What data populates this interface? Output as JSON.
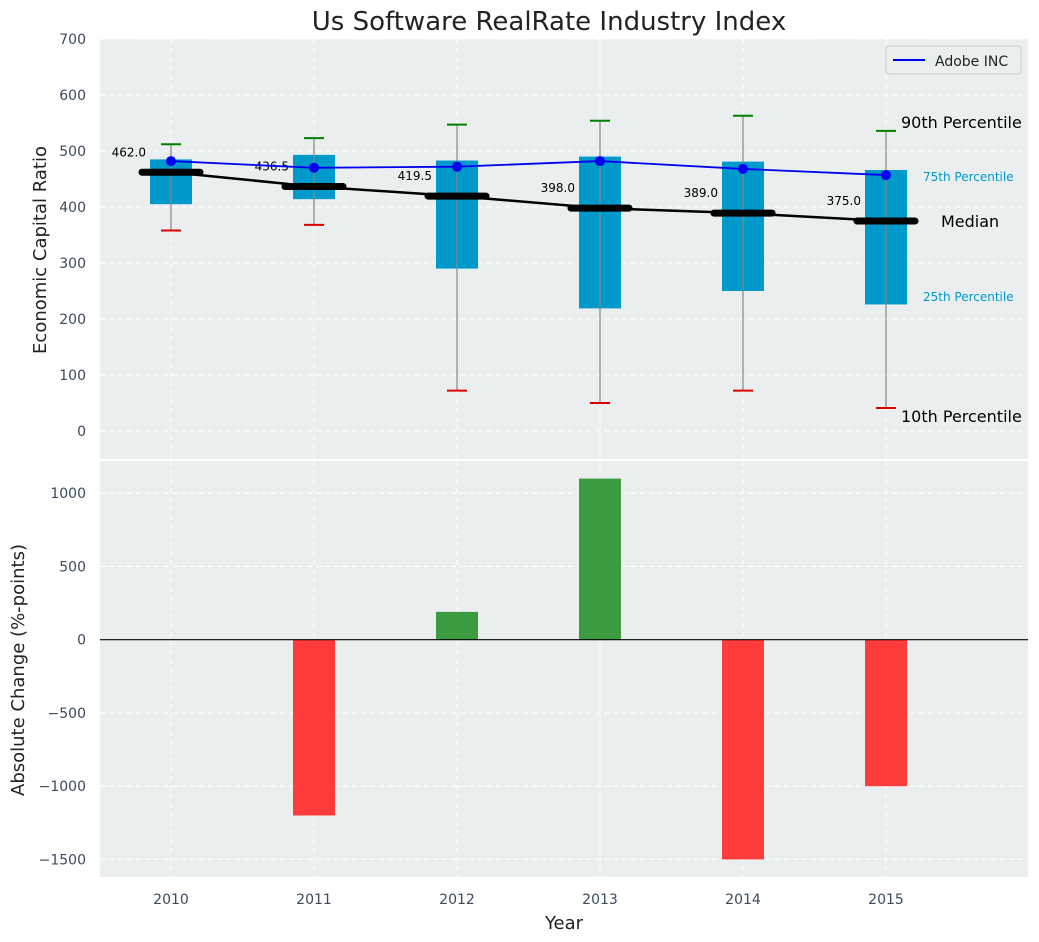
{
  "chart_data": [
    {
      "type": "box",
      "title": "Us Software RealRate Industry Index",
      "ylabel": "Economic Capital Ratio",
      "ylim": [
        -50,
        700
      ],
      "yticks": [
        0,
        100,
        200,
        300,
        400,
        500,
        600,
        700
      ],
      "categories": [
        "2010",
        "2011",
        "2012",
        "2013",
        "2014",
        "2015"
      ],
      "p10": [
        358,
        368,
        72,
        50,
        72,
        41
      ],
      "p25": [
        405,
        414,
        290,
        219,
        250,
        226
      ],
      "median": [
        462.0,
        436.5,
        419.5,
        398.0,
        389.0,
        375.0
      ],
      "median_labels": [
        "462.0",
        "436.5",
        "419.5",
        "398.0",
        "389.0",
        "375.0"
      ],
      "p75": [
        485,
        493,
        483,
        490,
        481,
        466
      ],
      "p90": [
        512,
        523,
        547,
        554,
        563,
        536
      ],
      "series": [
        {
          "name": "Adobe INC",
          "values": [
            482,
            470,
            472,
            482,
            468,
            457
          ],
          "color": "#0000ee"
        }
      ],
      "annotations": {
        "p90": "90th Percentile",
        "p75": "75th Percentile",
        "median": "Median",
        "p25": "25th Percentile",
        "p10": "10th Percentile"
      },
      "colors": {
        "box": "#0099cc",
        "median": "#000000",
        "p90_cap": "#008000",
        "p10_cap": "#dd0000",
        "whisker": "#888888",
        "background": "#eaeeef"
      },
      "legend": "top-right",
      "grid": true
    },
    {
      "type": "bar",
      "ylabel": "Absolute Change (%-points)",
      "xlabel": "Year",
      "categories": [
        "2010",
        "2011",
        "2012",
        "2013",
        "2014",
        "2015"
      ],
      "values": [
        0,
        -1200,
        190,
        1100,
        -1500,
        -1000
      ],
      "ylim": [
        -1620,
        1220
      ],
      "yticks": [
        -1500,
        -1000,
        -500,
        0,
        500,
        1000
      ],
      "ytick_labels": [
        "−1500",
        "−1000",
        "−500",
        "0",
        "500",
        "1000"
      ],
      "colors": {
        "positive": "#3a9c3e",
        "negative": "#ff3b3b",
        "zero_line": "#000000",
        "background": "#eaeeef"
      },
      "grid": true
    }
  ]
}
